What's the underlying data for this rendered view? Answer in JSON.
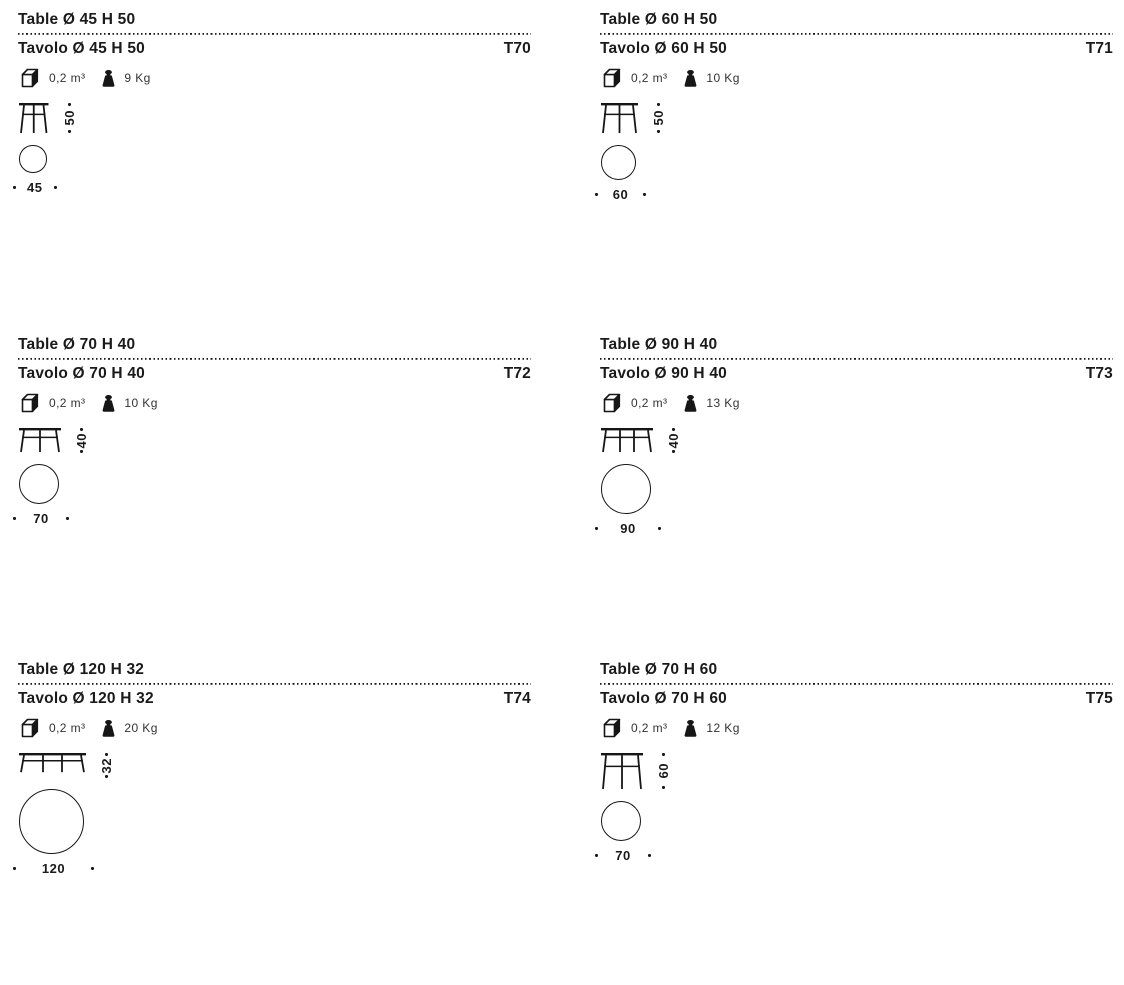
{
  "colors": {
    "text": "#1a1a1a",
    "line": "#161616",
    "spec_text": "#333333"
  },
  "icons": {
    "volume": "cube-3d-icon",
    "weight": "weight-icon"
  },
  "products": [
    {
      "title_en": "Table Ø 45 H 50",
      "title_it": "Tavolo Ø 45 H 50",
      "code": "T70",
      "volume": "0,2 m³",
      "weight": "9 Kg",
      "height_label": "50",
      "diameter_label": "45",
      "height_cm": 50,
      "diameter_cm": 45,
      "legs": 3
    },
    {
      "title_en": "Table Ø 60 H 50",
      "title_it": "Tavolo Ø 60 H 50",
      "code": "T71",
      "volume": "0,2 m³",
      "weight": "10 Kg",
      "height_label": "50",
      "diameter_label": "60",
      "height_cm": 50,
      "diameter_cm": 60,
      "legs": 3
    },
    {
      "title_en": "Table Ø 70 H 40",
      "title_it": "Tavolo Ø 70 H 40",
      "code": "T72",
      "volume": "0,2 m³",
      "weight": "10 Kg",
      "height_label": "40",
      "diameter_label": "70",
      "height_cm": 40,
      "diameter_cm": 70,
      "legs": 3
    },
    {
      "title_en": "Table Ø 90 H 40",
      "title_it": "Tavolo Ø 90 H 40",
      "code": "T73",
      "volume": "0,2 m³",
      "weight": "13 Kg",
      "height_label": "40",
      "diameter_label": "90",
      "height_cm": 40,
      "diameter_cm": 90,
      "legs": 4
    },
    {
      "title_en": "Table Ø 120 H 32",
      "title_it": "Tavolo Ø 120 H 32",
      "code": "T74",
      "volume": "0,2 m³",
      "weight": "20 Kg",
      "height_label": "32",
      "diameter_label": "120",
      "height_cm": 32,
      "diameter_cm": 120,
      "legs": 4
    },
    {
      "title_en": "Table Ø 70 H 60",
      "title_it": "Tavolo Ø 70 H 60",
      "code": "T75",
      "volume": "0,2 m³",
      "weight": "12 Kg",
      "height_label": "60",
      "diameter_label": "70",
      "height_cm": 60,
      "diameter_cm": 70,
      "legs": 3
    }
  ]
}
